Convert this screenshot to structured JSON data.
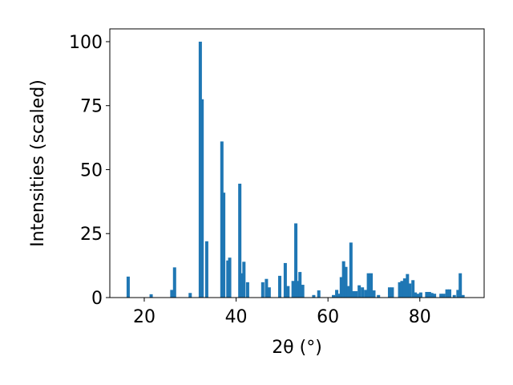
{
  "chart_data": {
    "type": "bar",
    "title": "",
    "xlabel": "2θ (°)",
    "ylabel": "Intensities (scaled)",
    "xlim": [
      12.5,
      94.0
    ],
    "ylim": [
      0,
      105
    ],
    "x_ticks": [
      20,
      40,
      60,
      80
    ],
    "y_ticks": [
      0,
      25,
      50,
      75,
      100
    ],
    "bar_width": 0.7,
    "bar_color": "#1f77b4",
    "grid": false,
    "legend": "none",
    "x": [
      16.5,
      21.5,
      26.0,
      26.6,
      30.0,
      32.2,
      32.6,
      33.6,
      36.9,
      37.3,
      38.2,
      38.6,
      40.8,
      41.2,
      41.7,
      42.5,
      45.8,
      46.6,
      47.2,
      49.5,
      50.7,
      51.3,
      52.4,
      53.0,
      53.5,
      53.9,
      54.5,
      56.9,
      58.0,
      61.2,
      61.9,
      62.4,
      62.9,
      63.4,
      63.9,
      64.5,
      65.0,
      65.5,
      66.1,
      66.8,
      67.5,
      68.2,
      68.8,
      69.4,
      70.0,
      71.0,
      73.4,
      74.0,
      75.6,
      76.1,
      76.7,
      77.3,
      77.8,
      78.5,
      79.0,
      79.6,
      80.2,
      81.5,
      82.1,
      82.6,
      83.2,
      84.6,
      85.2,
      85.9,
      86.5,
      87.5,
      88.3,
      88.8,
      89.4
    ],
    "values": [
      8.2,
      1.3,
      3.0,
      11.8,
      1.8,
      100.0,
      77.5,
      22.0,
      61.0,
      41.0,
      14.5,
      15.6,
      44.5,
      9.5,
      14.0,
      6.0,
      6.0,
      7.3,
      4.0,
      8.5,
      13.5,
      4.5,
      6.5,
      29.0,
      6.5,
      10.0,
      5.0,
      1.0,
      2.8,
      1.0,
      3.0,
      1.5,
      8.0,
      14.2,
      12.0,
      4.5,
      21.5,
      2.5,
      2.5,
      4.8,
      4.0,
      3.0,
      9.5,
      9.5,
      2.8,
      1.0,
      4.0,
      4.0,
      6.0,
      6.5,
      7.5,
      9.2,
      5.5,
      6.8,
      2.0,
      1.5,
      2.0,
      2.2,
      2.2,
      1.8,
      1.5,
      1.5,
      1.5,
      3.2,
      3.2,
      1.0,
      3.0,
      9.5,
      1.0
    ]
  }
}
